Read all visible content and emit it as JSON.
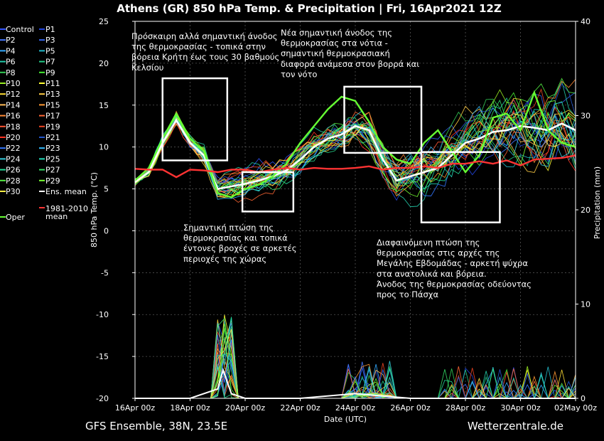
{
  "chart_data": {
    "type": "line",
    "title": "Athens  (GR)  850 hPa Temp. & Precipitation | Fri, 16Apr2021 12Z",
    "xlabel": "Date (UTC)",
    "ylabel": "850 hPa Temp. (°C)",
    "ylabel_right": "Precipitation (mm)",
    "footer_left": "GFS Ensemble, 38N, 23.5E",
    "footer_right": "Wetterzentrale.de",
    "ylim": [
      -20,
      25
    ],
    "y_ticks": [
      25,
      20,
      15,
      10,
      5,
      0,
      -5,
      -10,
      -15,
      -20
    ],
    "y2lim": [
      0,
      40
    ],
    "y2_ticks": [
      40,
      30,
      20,
      10,
      0
    ],
    "x_ticks": [
      "16Apr 00z",
      "18Apr 00z",
      "20Apr 00z",
      "22Apr 00z",
      "24Apr 00z",
      "26Apr 00z",
      "28Apr 00z",
      "30Apr 00z",
      "02May 00z"
    ],
    "xlim_days": [
      0,
      16
    ],
    "grid": true,
    "legend": [
      {
        "label": "Control",
        "color": "#3355ff"
      },
      {
        "label": "P1",
        "color": "#2244dd"
      },
      {
        "label": "P2",
        "color": "#4477ff"
      },
      {
        "label": "P3",
        "color": "#3366ee"
      },
      {
        "label": "P4",
        "color": "#33aaff"
      },
      {
        "label": "P5",
        "color": "#22bbcc"
      },
      {
        "label": "P6",
        "color": "#22ccaa"
      },
      {
        "label": "P7",
        "color": "#22cc88"
      },
      {
        "label": "P8",
        "color": "#33cc55"
      },
      {
        "label": "P9",
        "color": "#44ee33"
      },
      {
        "label": "P10",
        "color": "#99ee22"
      },
      {
        "label": "P11",
        "color": "#ffff33"
      },
      {
        "label": "P12",
        "color": "#ffdd33"
      },
      {
        "label": "P13",
        "color": "#ffcc44"
      },
      {
        "label": "P14",
        "color": "#ffbb55"
      },
      {
        "label": "P15",
        "color": "#ff9933"
      },
      {
        "label": "P16",
        "color": "#ff8833"
      },
      {
        "label": "P17",
        "color": "#ff6633"
      },
      {
        "label": "P18",
        "color": "#ff5533"
      },
      {
        "label": "P19",
        "color": "#ee4422"
      },
      {
        "label": "P20",
        "color": "#ff3322"
      },
      {
        "label": "P21",
        "color": "#2255cc"
      },
      {
        "label": "P22",
        "color": "#3377ff"
      },
      {
        "label": "P23",
        "color": "#33bbff"
      },
      {
        "label": "P24",
        "color": "#33ccdd"
      },
      {
        "label": "P25",
        "color": "#22ddbb"
      },
      {
        "label": "P26",
        "color": "#22dd99"
      },
      {
        "label": "P27",
        "color": "#33dd66"
      },
      {
        "label": "P28",
        "color": "#55ee44"
      },
      {
        "label": "P29",
        "color": "#77ff33"
      },
      {
        "label": "P30",
        "color": "#ffee44"
      },
      {
        "label": "Ens. mean",
        "color": "#ffffff"
      },
      {
        "label": "1981-2010 mean",
        "color": "#ff3333"
      },
      {
        "label": "Oper",
        "color": "#66ff33"
      }
    ],
    "series": [
      {
        "name": "Ens. mean",
        "x": [
          0,
          0.5,
          1,
          1.5,
          2,
          2.5,
          3,
          3.5,
          4,
          4.5,
          5,
          5.5,
          6,
          6.5,
          7,
          7.5,
          8,
          8.5,
          9,
          9.5,
          10,
          10.5,
          11,
          11.5,
          12,
          12.5,
          13,
          13.5,
          14,
          14.5,
          15,
          15.5,
          16
        ],
        "y": [
          5.8,
          7.0,
          10.5,
          13.2,
          10.5,
          9.0,
          5.0,
          5.3,
          5.6,
          6.0,
          6.5,
          7.2,
          8.5,
          10.0,
          11.0,
          11.5,
          12.5,
          12.0,
          8.5,
          6.0,
          6.5,
          7.0,
          7.5,
          9.0,
          10.5,
          11.0,
          11.8,
          12.0,
          12.5,
          12.3,
          12.0,
          12.8,
          12.0
        ]
      },
      {
        "name": "Oper",
        "x": [
          0,
          0.5,
          1,
          1.5,
          2,
          2.5,
          3,
          3.5,
          4,
          4.5,
          5,
          5.5,
          6,
          6.5,
          7,
          7.5,
          8,
          8.5,
          9,
          9.5,
          10,
          10.5,
          11,
          11.5,
          12,
          12.5,
          13,
          13.5,
          14,
          14.5,
          15,
          15.5,
          16
        ],
        "y": [
          6.0,
          7.5,
          11.0,
          14.0,
          11.0,
          9.5,
          4.5,
          4.0,
          5.0,
          5.5,
          6.5,
          8.0,
          10.5,
          12.5,
          14.5,
          16.0,
          15.5,
          13.0,
          10.0,
          8.5,
          8.0,
          10.5,
          12.0,
          9.5,
          7.0,
          9.0,
          13.5,
          14.0,
          12.0,
          16.5,
          12.0,
          10.5,
          10.0
        ]
      },
      {
        "name": "1981-2010 mean",
        "x": [
          0,
          0.5,
          1,
          1.5,
          2,
          2.5,
          3,
          3.5,
          4,
          4.5,
          5,
          5.5,
          6,
          6.5,
          7,
          7.5,
          8,
          8.5,
          9,
          9.5,
          10,
          10.5,
          11,
          11.5,
          12,
          12.5,
          13,
          13.5,
          14,
          14.5,
          15,
          15.5,
          16
        ],
        "y": [
          7.4,
          7.3,
          7.3,
          6.4,
          7.3,
          7.2,
          7.0,
          7.3,
          7.3,
          7.0,
          7.3,
          7.5,
          7.3,
          7.5,
          7.4,
          7.4,
          7.5,
          7.7,
          7.3,
          7.5,
          7.5,
          7.7,
          7.5,
          8.0,
          8.0,
          8.3,
          8.0,
          8.4,
          7.8,
          8.5,
          8.6,
          8.7,
          9.0
        ]
      }
    ],
    "precip_ens_mean": {
      "x": [
        0,
        2,
        3,
        3.2,
        3.5,
        4,
        6,
        8,
        10,
        12,
        14,
        16
      ],
      "y_mm": [
        0,
        0,
        1,
        3,
        0.5,
        0,
        0,
        0.5,
        0,
        0,
        0,
        0
      ]
    },
    "annotations": [
      "Πρόσκαιρη αλλά σημαντική άνοδος της θερμοκρασίας - τοπικά στην βόρεια Κρήτη έως τους 30 βαθμούς Κελσίου",
      "Νέα σημαντική άνοδος της θερμοκρασίας στα νότια - σημαντική θερμοκρασιακή διαφορά ανάμεσα στον βορρά και τον νότο",
      "Σημαντική πτώση της θερμοκρασίας και τοπικά έντονες βροχές σε αρκετές περιοχές της χώρας",
      "Διαφαινόμενη πτώση της θερμοκρασίας στις αρχές της Μεγάλης Εβδομάδας - αρκετή ψύχρα στα ανατολικά και βόρεια. Άνοδος της θερμοκρασίας οδεύοντας προς το Πάσχα"
    ],
    "annotation_lines": [
      [
        "Πρόσκαιρη αλλά σημαντική άνοδος",
        "της θερμοκρασίας - τοπικά στην",
        "βόρεια Κρήτη έως τους 30 βαθμούς",
        "Κελσίου"
      ],
      [
        "Νέα σημαντική άνοδος της",
        "θερμοκρασίας στα νότια -",
        "σημαντική θερμοκρασιακή",
        "διαφορά ανάμεσα στον βορρά και",
        "τον νότο"
      ],
      [
        "Σημαντική πτώση της",
        "θερμοκρασίας και τοπικά",
        "έντονες βροχές σε αρκετές",
        "περιοχές της χώρας"
      ],
      [
        "Διαφαινόμενη πτώση της",
        "θερμοκρασίας στις αρχές της",
        "Μεγάλης Εβδομάδας - αρκετή ψύχρα",
        "στα ανατολικά και βόρεια.",
        "Άνοδος της θερμοκρασίας οδεύοντας",
        "προς το Πάσχα"
      ]
    ]
  }
}
